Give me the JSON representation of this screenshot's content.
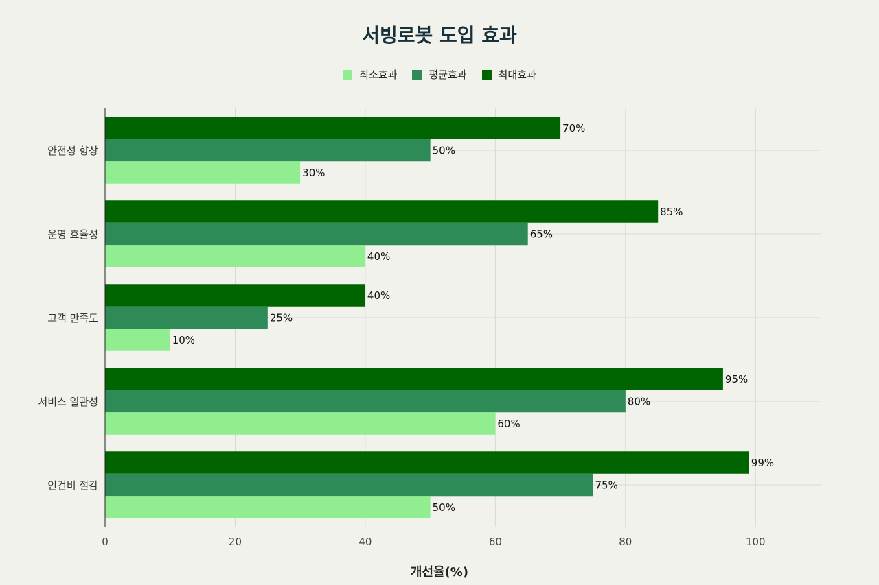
{
  "chart_data": {
    "type": "bar",
    "orientation": "horizontal",
    "title": "서빙로봇 도입 효과",
    "xlabel": "개선율(%)",
    "ylabel": "",
    "xlim": [
      0,
      110
    ],
    "xticks": [
      0,
      20,
      40,
      60,
      80,
      100
    ],
    "grid": true,
    "legend_position": "top-center",
    "value_suffix": "%",
    "categories": [
      "안전성 향상",
      "운영 효율성",
      "고객 만족도",
      "서비스 일관성",
      "인건비 절감"
    ],
    "series": [
      {
        "name": "최소효과",
        "color": "#90ee90",
        "values": [
          30,
          40,
          10,
          60,
          50
        ]
      },
      {
        "name": "평균효과",
        "color": "#2e8b57",
        "values": [
          50,
          65,
          25,
          80,
          75
        ]
      },
      {
        "name": "최대효과",
        "color": "#006400",
        "values": [
          70,
          85,
          40,
          95,
          99
        ]
      }
    ]
  }
}
